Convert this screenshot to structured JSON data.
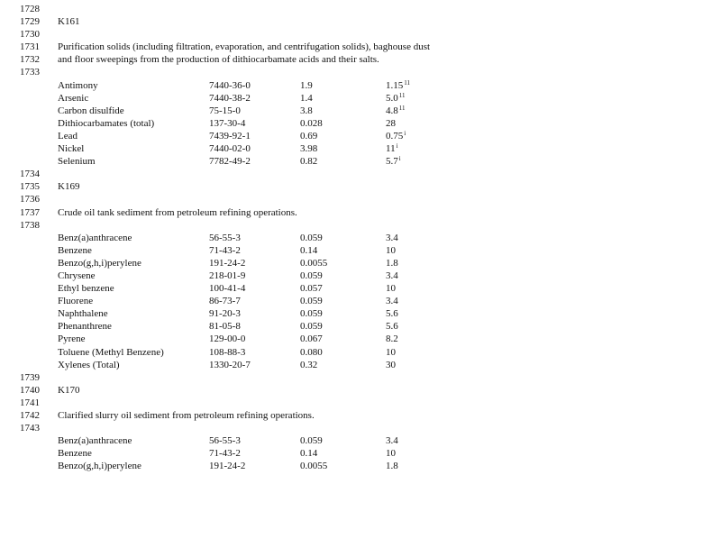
{
  "sections": [
    {
      "code_line": "1729",
      "code": "K161",
      "blank_before": [
        "1728"
      ],
      "blank_after_code": "1730",
      "description_lines": [
        {
          "line": "1731",
          "text": "Purification solids (including filtration, evaporation, and centrifugation solids), baghouse dust"
        },
        {
          "line": "1732",
          "text": "and floor sweepings from the production of dithiocarbamate acids and their salts."
        }
      ],
      "blank_after_desc": "1733",
      "rows": [
        {
          "name": "Antimony",
          "cas": "7440-36-0",
          "value1": "1.9",
          "value2": "1.15",
          "note": "11"
        },
        {
          "name": "Arsenic",
          "cas": "7440-38-2",
          "value1": "1.4",
          "value2": "5.0",
          "note": "11"
        },
        {
          "name": "Carbon disulfide",
          "cas": "75-15-0",
          "value1": "3.8",
          "value2": "4.8",
          "note": "11"
        },
        {
          "name": "Dithiocarbamates (total)",
          "cas": "137-30-4",
          "value1": "0.028",
          "value2": "28",
          "note": ""
        },
        {
          "name": "Lead",
          "cas": "7439-92-1",
          "value1": "0.69",
          "value2": "0.75",
          "note": "i"
        },
        {
          "name": "Nickel",
          "cas": "7440-02-0",
          "value1": "3.98",
          "value2": "11",
          "note": "i"
        },
        {
          "name": "Selenium",
          "cas": "7782-49-2",
          "value1": "0.82",
          "value2": "5.7",
          "note": "i"
        }
      ]
    },
    {
      "code_line": "1735",
      "code": "K169",
      "blank_before": [
        "1734"
      ],
      "blank_after_code": "1736",
      "description_lines": [
        {
          "line": "1737",
          "text": "Crude oil tank sediment  from petroleum refining operations."
        }
      ],
      "blank_after_desc": "1738",
      "rows": [
        {
          "name": "Benz(a)anthracene",
          "cas": "56-55-3",
          "value1": "0.059",
          "value2": "3.4",
          "note": ""
        },
        {
          "name": "Benzene",
          "cas": "71-43-2",
          "value1": "0.14",
          "value2": "10",
          "note": ""
        },
        {
          "name": "Benzo(g,h,i)perylene",
          "cas": "191-24-2",
          "value1": "0.0055",
          "value2": "1.8",
          "note": ""
        },
        {
          "name": "Chrysene",
          "cas": "218-01-9",
          "value1": "0.059",
          "value2": "3.4",
          "note": ""
        },
        {
          "name": "Ethyl benzene",
          "cas": "100-41-4",
          "value1": "0.057",
          "value2": "10",
          "note": ""
        },
        {
          "name": "Fluorene",
          "cas": "86-73-7",
          "value1": "0.059",
          "value2": "3.4",
          "note": ""
        },
        {
          "name": "Naphthalene",
          "cas": "91-20-3",
          "value1": "0.059",
          "value2": "5.6",
          "note": ""
        },
        {
          "name": "Phenanthrene",
          "cas": "81-05-8",
          "value1": "0.059",
          "value2": "5.6",
          "note": ""
        },
        {
          "name": "Pyrene",
          "cas": "129-00-0",
          "value1": "0.067",
          "value2": "8.2",
          "note": ""
        },
        {
          "name": "Toluene (Methyl Benzene)",
          "cas": "108-88-3",
          "value1": "0.080",
          "value2": "10",
          "note": ""
        },
        {
          "name": "Xylenes (Total)",
          "cas": "1330-20-7",
          "value1": "0.32",
          "value2": "30",
          "note": ""
        }
      ]
    },
    {
      "code_line": "1740",
      "code": "K170",
      "blank_before": [
        "1739"
      ],
      "blank_after_code": "1741",
      "description_lines": [
        {
          "line": "1742",
          "text": "Clarified slurry oil sediment  from petroleum refining operations."
        }
      ],
      "blank_after_desc": "1743",
      "rows": [
        {
          "name": "Benz(a)anthracene",
          "cas": "56-55-3",
          "value1": "0.059",
          "value2": "3.4",
          "note": ""
        },
        {
          "name": "Benzene",
          "cas": "71-43-2",
          "value1": "0.14",
          "value2": "10",
          "note": ""
        },
        {
          "name": "Benzo(g,h,i)perylene",
          "cas": "191-24-2",
          "value1": "0.0055",
          "value2": "1.8",
          "note": ""
        }
      ]
    }
  ]
}
